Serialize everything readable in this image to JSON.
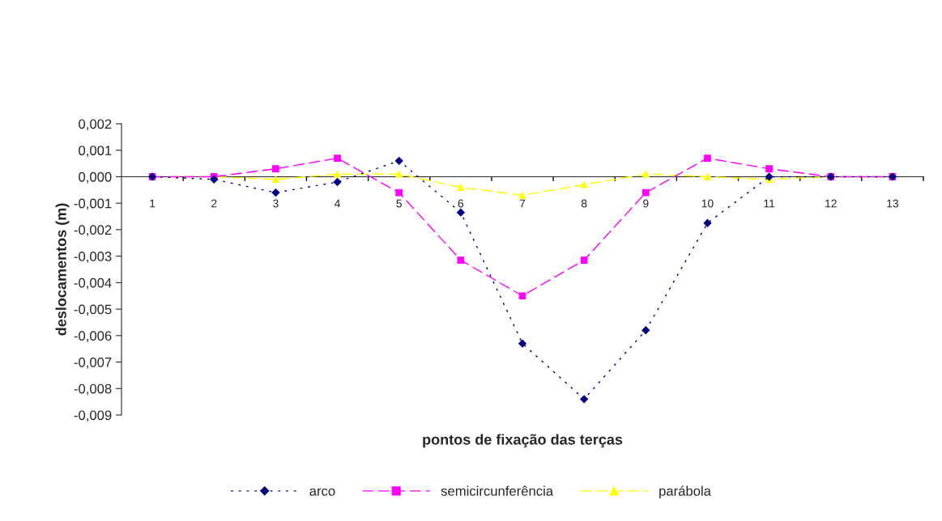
{
  "chart_data": {
    "type": "line",
    "xlabel": "pontos de fixação das terças",
    "ylabel": "deslocamentos (m)",
    "categories": [
      "1",
      "2",
      "3",
      "4",
      "5",
      "6",
      "7",
      "8",
      "9",
      "10",
      "11",
      "12",
      "13"
    ],
    "series": [
      {
        "name": "arco",
        "color": "#000080",
        "marker": "diamond",
        "line_style": "dotted",
        "values": [
          0,
          -0.0001,
          -0.0006,
          -0.0002,
          0.0006,
          -0.00135,
          -0.0063,
          -0.0084,
          -0.0058,
          -0.00175,
          0,
          0,
          0
        ]
      },
      {
        "name": "semicircunferência",
        "color": "#ff00ff",
        "marker": "square",
        "line_style": "dashed",
        "values": [
          0,
          0,
          0.0003,
          0.0007,
          -0.0006,
          -0.00315,
          -0.0045,
          -0.00315,
          -0.0006,
          0.0007,
          0.0003,
          0,
          0
        ]
      },
      {
        "name": "parábola",
        "color": "#ffff00",
        "marker": "triangle",
        "line_style": "dashed",
        "values": [
          0,
          0,
          -0.0001,
          0.0001,
          0.0001,
          -0.0004,
          -0.0007,
          -0.0003,
          0.0001,
          0,
          -0.0001,
          0,
          0
        ]
      }
    ],
    "ylim": [
      -0.009,
      0.002
    ],
    "yticks": [
      {
        "value": 0.002,
        "label": "0,002"
      },
      {
        "value": 0.001,
        "label": "0,001"
      },
      {
        "value": 0,
        "label": "0,000"
      },
      {
        "value": -0.001,
        "label": "-0,001"
      },
      {
        "value": -0.002,
        "label": "-0,002"
      },
      {
        "value": -0.003,
        "label": "-0,003"
      },
      {
        "value": -0.004,
        "label": "-0,004"
      },
      {
        "value": -0.005,
        "label": "-0,005"
      },
      {
        "value": -0.006,
        "label": "-0,006"
      },
      {
        "value": -0.007,
        "label": "-0,007"
      },
      {
        "value": -0.008,
        "label": "-0,008"
      },
      {
        "value": -0.009,
        "label": "-0,009"
      }
    ],
    "grid": false,
    "legend": "bottom"
  }
}
